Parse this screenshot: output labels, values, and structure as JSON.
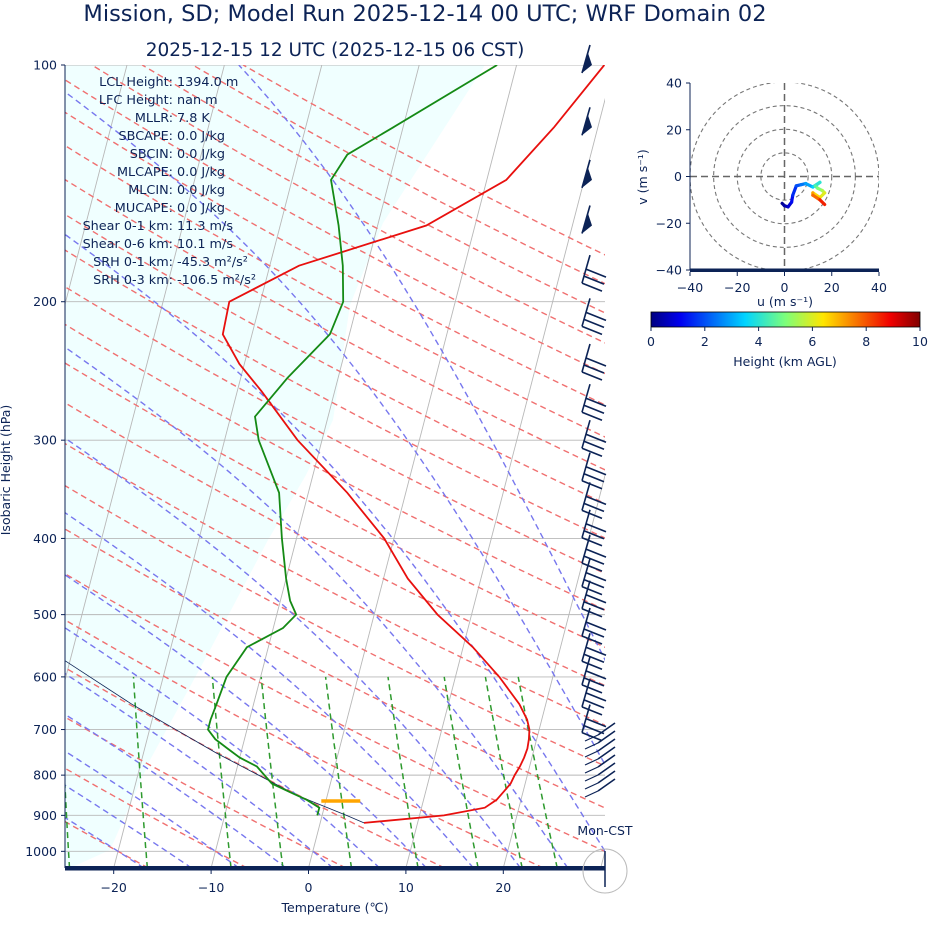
{
  "title": "Mission, SD; Model Run 2025-12-14 00 UTC; WRF Domain 02",
  "subtitle": "2025-12-15 12 UTC  (2025-12-15 06 CST)",
  "stats": [
    {
      "label": "LCL Height:",
      "value": "1394.0 m"
    },
    {
      "label": "LFC Height:",
      "value": "nan m"
    },
    {
      "label": "MLLR:",
      "value": "7.8 K"
    },
    {
      "label": "SBCAPE:",
      "value": "0.0 J/kg"
    },
    {
      "label": "SBCIN:",
      "value": "0.0 J/kg"
    },
    {
      "label": "MLCAPE:",
      "value": "0.0 J/kg"
    },
    {
      "label": "MLCIN:",
      "value": "0.0 J/kg"
    },
    {
      "label": "MUCAPE:",
      "value": "0.0 J/kg"
    },
    {
      "label": "Shear 0-1 km:",
      "value": "11.3 m/s"
    },
    {
      "label": "Shear 0-6 km:",
      "value": "10.1 m/s"
    },
    {
      "label": "SRH 0-1 km:",
      "value": "-45.3 m²/s²"
    },
    {
      "label": "SRH 0-3 km:",
      "value": "-106.5 m²/s²"
    }
  ],
  "mon_label": "Mon-CST",
  "colors": {
    "temperature": "#e8100e",
    "dewpoint": "#158a15",
    "dry_adiabat": "#f07070",
    "moist_adiabat": "#7777ee",
    "mixing_ratio": "#2e9a2e",
    "isotherm": "#b8b8b8",
    "cape_fill": "#f0ffff",
    "barb": "#0c2356",
    "lcl": "#ffa500",
    "text": "#0c2356"
  },
  "chart_data": [
    {
      "type": "line",
      "name": "skew-t",
      "xlabel": "Temperature (℃)",
      "ylabel": "Isobaric Height (hPa)",
      "xlim": [
        -25,
        30
      ],
      "ylim": [
        1050,
        100
      ],
      "y_scale": "log",
      "x_ticks": [
        -20,
        -10,
        0,
        10,
        20
      ],
      "y_ticks": [
        1000,
        900,
        800,
        700,
        600,
        500,
        400,
        300,
        200,
        100
      ],
      "temperature": {
        "p": [
          920,
          900,
          880,
          860,
          840,
          820,
          800,
          780,
          760,
          740,
          720,
          700,
          680,
          650,
          600,
          550,
          500,
          450,
          400,
          350,
          300,
          260,
          240,
          220,
          200,
          180,
          160,
          140,
          120,
          100
        ],
        "t": [
          4.5,
          12.5,
          16.5,
          17.5,
          18.0,
          18.5,
          18.7,
          19.0,
          19.2,
          19.3,
          19.2,
          19.0,
          18.5,
          17.3,
          14.5,
          11.0,
          6.5,
          2.5,
          -1.0,
          -6.0,
          -12.5,
          -17.5,
          -20.5,
          -23.0,
          -23.2,
          -17.0,
          -5.0,
          2.0,
          5.5,
          9.0
        ]
      },
      "dewpoint": {
        "p": [
          900,
          880,
          860,
          840,
          820,
          800,
          780,
          760,
          740,
          720,
          700,
          680,
          650,
          600,
          550,
          520,
          500,
          480,
          450,
          400,
          350,
          300,
          280,
          250,
          220,
          200,
          180,
          160,
          140,
          130,
          120,
          100
        ],
        "t": [
          -0.5,
          -0.5,
          -2.0,
          -4.0,
          -6.0,
          -7.0,
          -8.0,
          -10.0,
          -11.5,
          -13.0,
          -14.0,
          -14.0,
          -13.8,
          -13.5,
          -12.2,
          -9.0,
          -8.0,
          -9.0,
          -10.0,
          -11.5,
          -13.0,
          -16.5,
          -17.5,
          -15.2,
          -12.0,
          -11.5,
          -12.5,
          -14.0,
          -16.0,
          -15.0,
          -11.0,
          -2.0
        ]
      },
      "parcel": {
        "p": [
          920,
          900,
          850,
          750,
          650,
          550,
          470
        ],
        "t": [
          4.5,
          2.5,
          -3.0,
          -12.5,
          -22.5,
          -33.0,
          -43.5
        ]
      },
      "cape_region": "light cyan shaded area between parcel and environment",
      "lcl_marker": {
        "p": 860,
        "t": [
          -0.5,
          3.5
        ]
      },
      "wind_barbs": "right margin column"
    },
    {
      "type": "scatter",
      "name": "hodograph",
      "xlabel": "u (m s⁻¹)",
      "ylabel": "v (m s⁻¹)",
      "xlim": [
        -40,
        40
      ],
      "ylim": [
        -40,
        40
      ],
      "x_ticks": [
        -40,
        -20,
        0,
        20,
        40
      ],
      "y_ticks": [
        -40,
        -20,
        0,
        20,
        40
      ],
      "grid": "rings",
      "colorbar": {
        "label": "Height (km AGL)",
        "ticks": [
          0,
          2,
          4,
          6,
          8,
          10
        ],
        "range": [
          0,
          10
        ]
      },
      "u": [
        -1.0,
        0.0,
        1.5,
        3.0,
        3.5,
        5.0,
        7.0,
        9.0,
        12.0,
        15.0,
        13.0,
        14.0,
        16.0,
        17.0,
        15.0,
        12.0,
        12.0,
        15.0,
        17.0
      ],
      "v": [
        -11.5,
        -12.5,
        -13.0,
        -11.0,
        -8.0,
        -4.0,
        -3.5,
        -3.0,
        -4.5,
        -2.5,
        -4.0,
        -5.0,
        -6.0,
        -7.0,
        -9.0,
        -7.0,
        -8.0,
        -10.0,
        -12.0
      ],
      "height_km": [
        0.1,
        0.3,
        0.6,
        1.0,
        1.4,
        1.8,
        2.2,
        2.7,
        3.2,
        3.8,
        4.3,
        4.8,
        5.3,
        5.8,
        6.3,
        6.8,
        7.4,
        8.1,
        9.0
      ]
    }
  ]
}
